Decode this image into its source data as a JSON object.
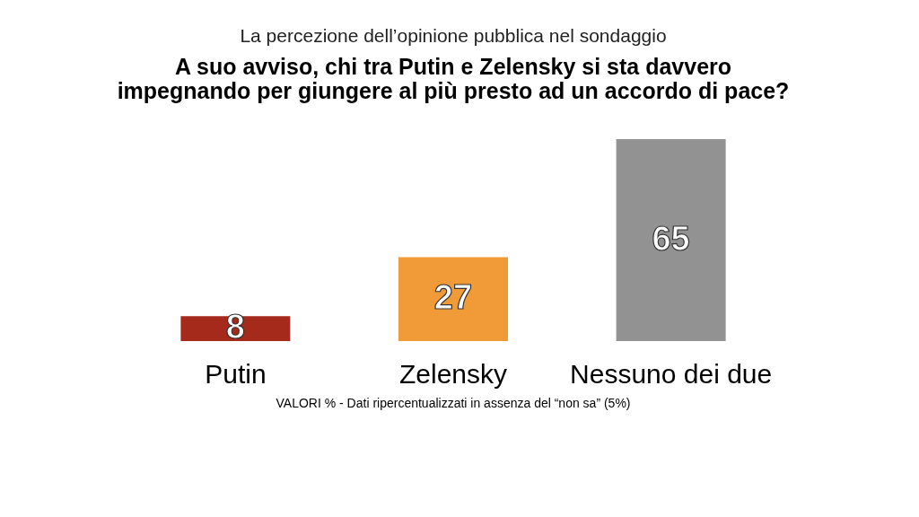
{
  "chart_data": {
    "type": "bar",
    "subtitle": "La percezione dell’opinione pubblica nel sondaggio",
    "title": "A suo avviso, chi tra Putin e Zelensky si sta davvero impegnando per giungere al più presto ad un accordo di pace?",
    "categories": [
      "Putin",
      "Zelensky",
      "Nessuno dei due"
    ],
    "values": [
      8,
      27,
      65
    ],
    "colors": [
      "#a52a1b",
      "#f09a38",
      "#929292"
    ],
    "data_labels": true,
    "annotations": [
      "VALORI % - Dati ripercentualizzati in assenza del “non sa” (5%)"
    ]
  }
}
